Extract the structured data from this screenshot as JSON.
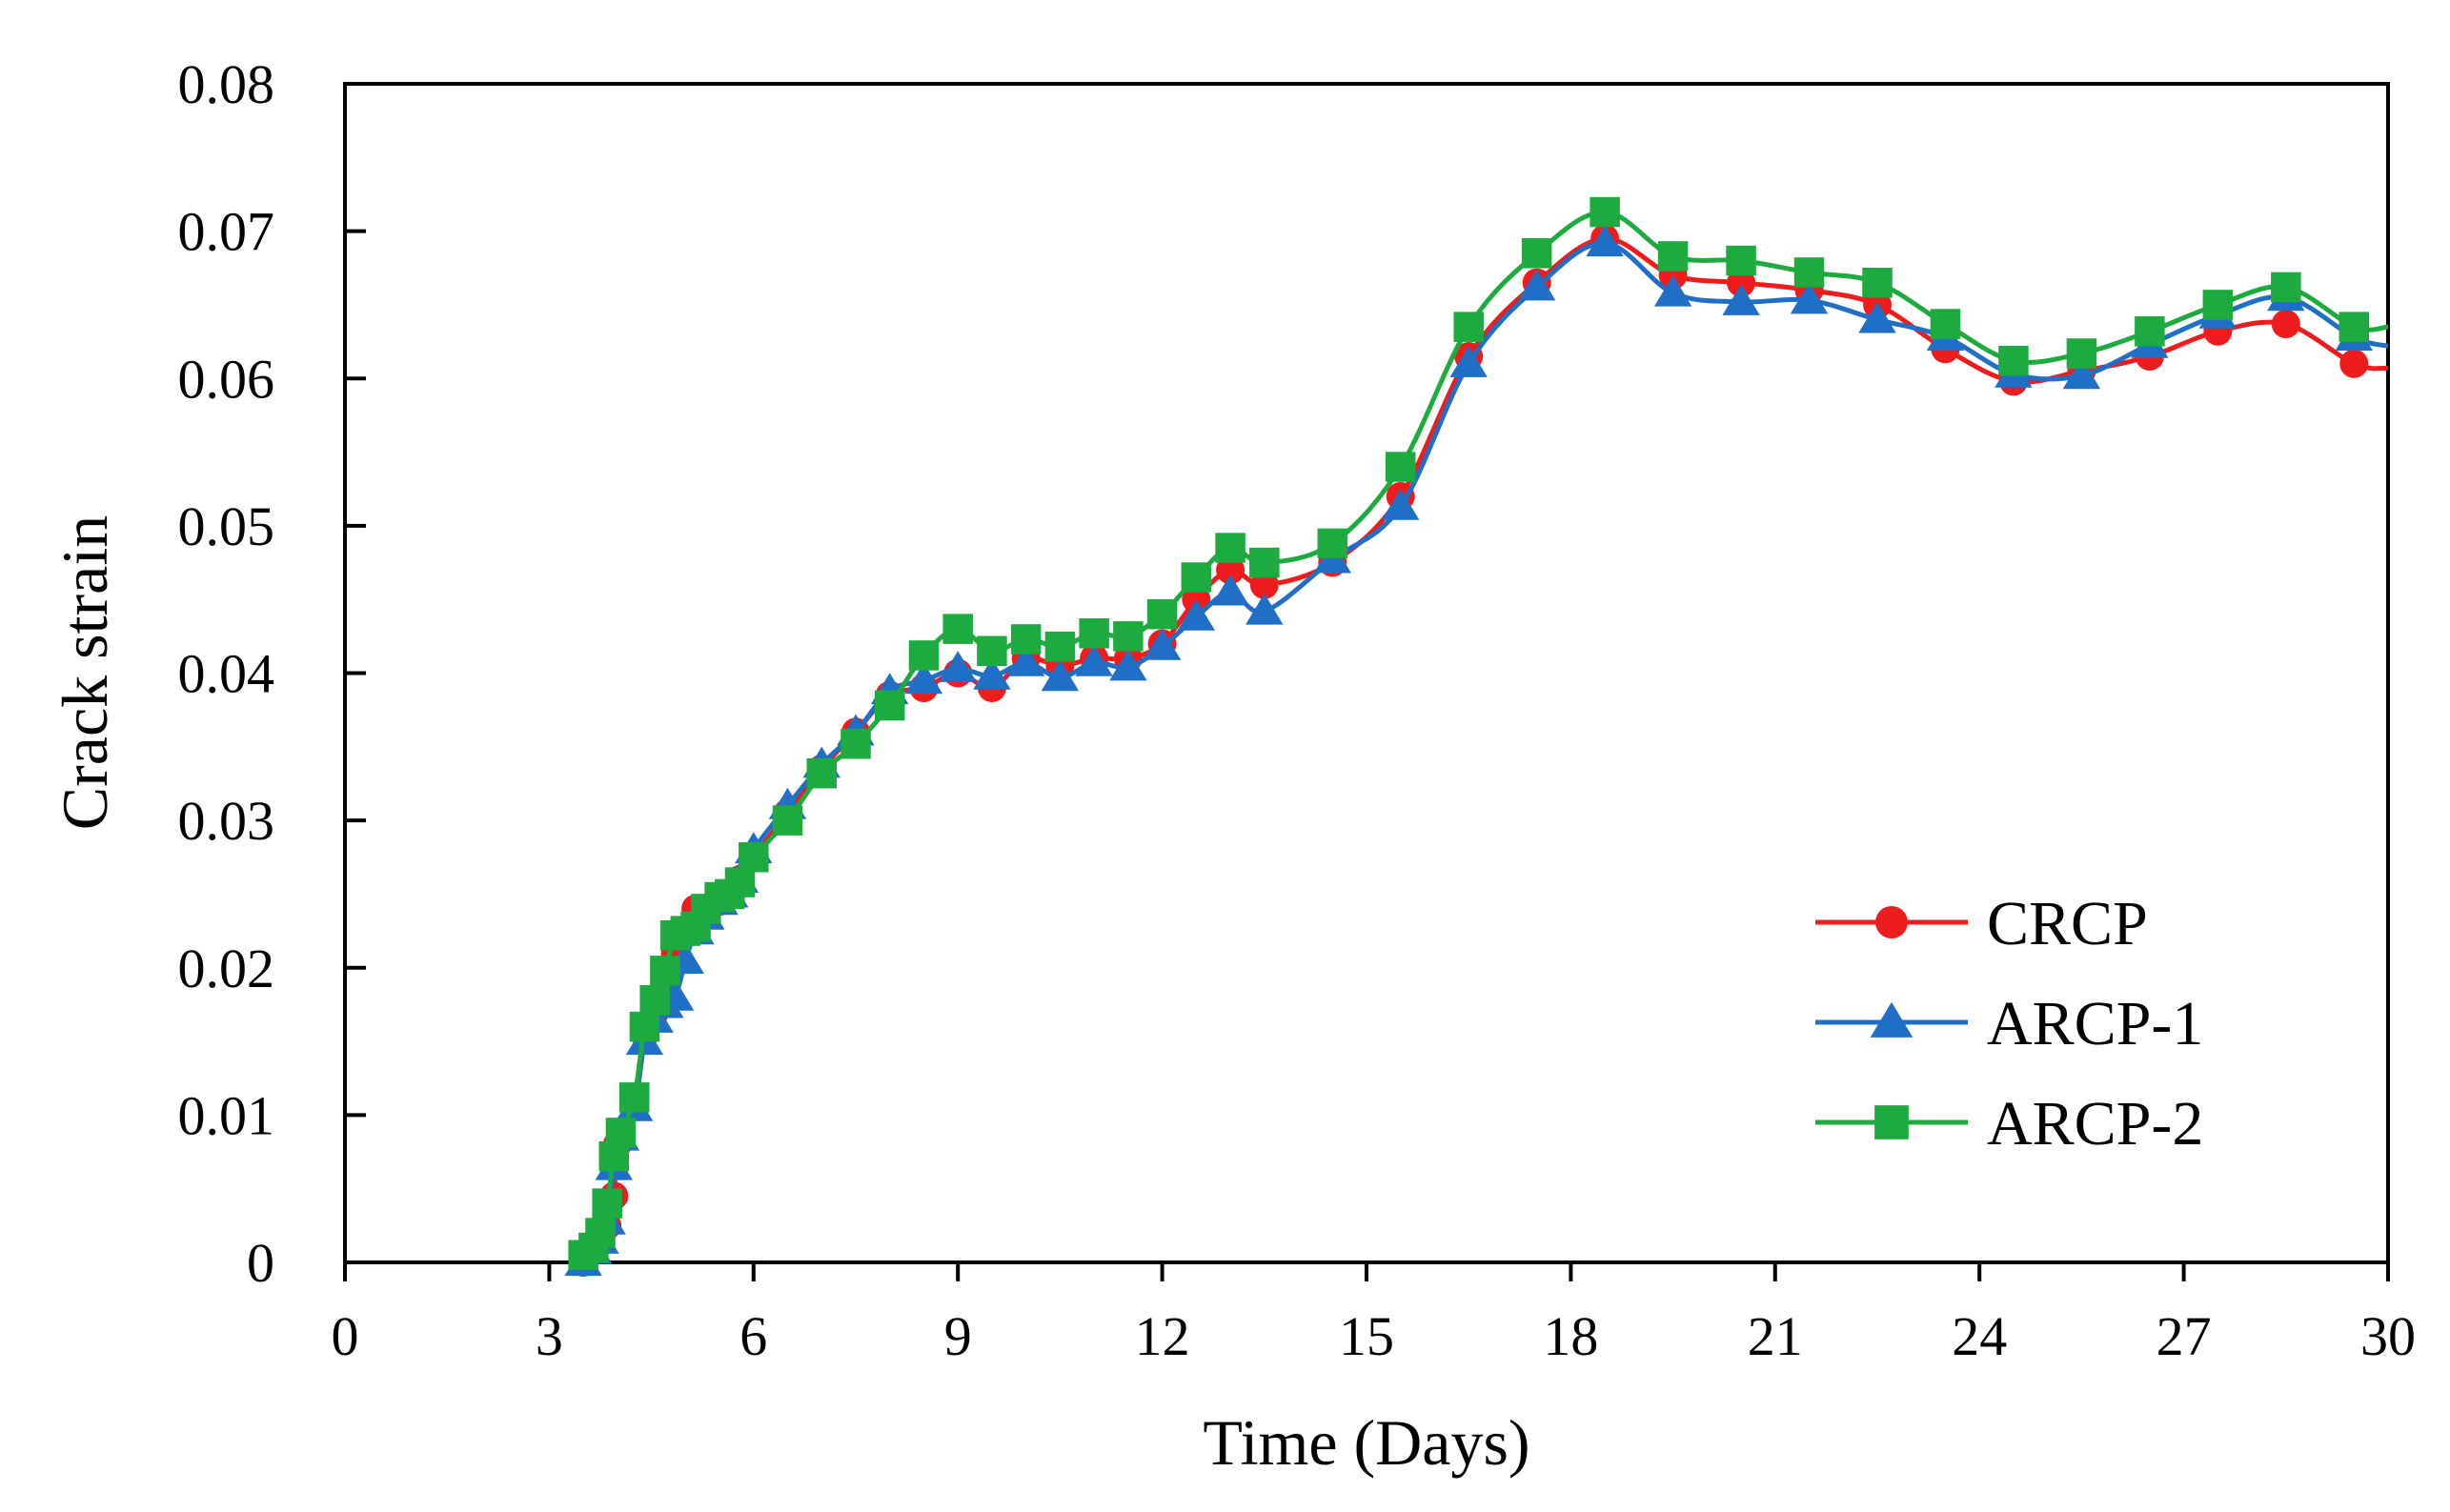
{
  "chart_data": {
    "type": "line",
    "title": "",
    "xlabel": "Time (Days)",
    "ylabel": "Crack strain",
    "xlim": [
      0,
      30
    ],
    "ylim": [
      0,
      0.08
    ],
    "xticks": [
      0,
      3,
      6,
      9,
      12,
      15,
      18,
      21,
      24,
      27,
      30
    ],
    "xtick_labels": [
      "0",
      "3",
      "6",
      "9",
      "12",
      "15",
      "18",
      "21",
      "24",
      "27",
      "30"
    ],
    "yticks": [
      0,
      0.01,
      0.02,
      0.03,
      0.04,
      0.05,
      0.06,
      0.07,
      0.08
    ],
    "ytick_labels": [
      "0",
      "0.01",
      "0.02",
      "0.03",
      "0.04",
      "0.05",
      "0.06",
      "0.07",
      "0.08"
    ],
    "grid": false,
    "legend_position": "bottom-right",
    "series": [
      {
        "name": "CRCP",
        "color": "#ee1c1c",
        "marker": "circle",
        "points": [
          [
            3.5,
            0.0
          ],
          [
            3.65,
            0.001
          ],
          [
            3.75,
            0.0015
          ],
          [
            3.85,
            0.0025
          ],
          [
            3.95,
            0.0045
          ],
          [
            4.0,
            0.008
          ],
          [
            4.25,
            0.011
          ],
          [
            4.4,
            0.0155
          ],
          [
            4.55,
            0.017
          ],
          [
            4.7,
            0.019
          ],
          [
            4.85,
            0.021
          ],
          [
            5.0,
            0.0225
          ],
          [
            5.15,
            0.024
          ],
          [
            5.3,
            0.024
          ],
          [
            5.5,
            0.0245
          ],
          [
            5.65,
            0.025
          ],
          [
            5.8,
            0.026
          ],
          [
            6.0,
            0.0275
          ],
          [
            6.5,
            0.0305
          ],
          [
            7.0,
            0.0335
          ],
          [
            7.5,
            0.036
          ],
          [
            8.0,
            0.0385
          ],
          [
            8.5,
            0.039
          ],
          [
            9.0,
            0.04
          ],
          [
            9.5,
            0.039
          ],
          [
            10.0,
            0.041
          ],
          [
            10.5,
            0.0405
          ],
          [
            11.0,
            0.041
          ],
          [
            11.5,
            0.041
          ],
          [
            12.0,
            0.042
          ],
          [
            12.5,
            0.045
          ],
          [
            13.0,
            0.047
          ],
          [
            13.5,
            0.046
          ],
          [
            14.5,
            0.0475
          ],
          [
            15.5,
            0.052
          ],
          [
            16.5,
            0.0615
          ],
          [
            17.5,
            0.0665
          ],
          [
            18.5,
            0.0695
          ],
          [
            19.5,
            0.067
          ],
          [
            20.5,
            0.0665
          ],
          [
            21.5,
            0.066
          ],
          [
            22.5,
            0.065
          ],
          [
            23.5,
            0.062
          ],
          [
            24.5,
            0.0598
          ],
          [
            25.5,
            0.0605
          ],
          [
            26.5,
            0.0615
          ],
          [
            27.5,
            0.0632
          ],
          [
            28.5,
            0.0637
          ],
          [
            29.5,
            0.061
          ],
          [
            30.0,
            0.0607
          ]
        ]
      },
      {
        "name": "ARCP-1",
        "color": "#1f6fc6",
        "marker": "triangle",
        "points": [
          [
            3.5,
            0.0
          ],
          [
            3.65,
            0.0008
          ],
          [
            3.75,
            0.0015
          ],
          [
            3.85,
            0.0028
          ],
          [
            3.95,
            0.0065
          ],
          [
            4.05,
            0.0085
          ],
          [
            4.25,
            0.0105
          ],
          [
            4.4,
            0.015
          ],
          [
            4.55,
            0.0165
          ],
          [
            4.7,
            0.0175
          ],
          [
            4.85,
            0.018
          ],
          [
            5.0,
            0.0205
          ],
          [
            5.15,
            0.0225
          ],
          [
            5.3,
            0.0235
          ],
          [
            5.5,
            0.0245
          ],
          [
            5.65,
            0.025
          ],
          [
            5.8,
            0.026
          ],
          [
            6.0,
            0.028
          ],
          [
            6.5,
            0.031
          ],
          [
            7.0,
            0.0338
          ],
          [
            7.5,
            0.036
          ],
          [
            8.0,
            0.0388
          ],
          [
            8.5,
            0.0395
          ],
          [
            9.0,
            0.0403
          ],
          [
            9.5,
            0.0398
          ],
          [
            10.0,
            0.0407
          ],
          [
            10.5,
            0.0397
          ],
          [
            11.0,
            0.0407
          ],
          [
            11.5,
            0.0404
          ],
          [
            12.0,
            0.0418
          ],
          [
            12.5,
            0.0438
          ],
          [
            13.0,
            0.0455
          ],
          [
            13.5,
            0.0442
          ],
          [
            14.5,
            0.0477
          ],
          [
            15.5,
            0.0513
          ],
          [
            16.5,
            0.061
          ],
          [
            17.5,
            0.0662
          ],
          [
            18.5,
            0.0692
          ],
          [
            19.5,
            0.0658
          ],
          [
            20.5,
            0.0652
          ],
          [
            21.5,
            0.0653
          ],
          [
            22.5,
            0.064
          ],
          [
            23.5,
            0.0628
          ],
          [
            24.5,
            0.0603
          ],
          [
            25.5,
            0.0602
          ],
          [
            26.5,
            0.0623
          ],
          [
            27.5,
            0.0643
          ],
          [
            28.5,
            0.0655
          ],
          [
            29.5,
            0.0628
          ],
          [
            30.0,
            0.0622
          ]
        ]
      },
      {
        "name": "ARCP-2",
        "color": "#1daa3e",
        "marker": "square",
        "points": [
          [
            3.5,
            0.0005
          ],
          [
            3.65,
            0.001
          ],
          [
            3.75,
            0.002
          ],
          [
            3.85,
            0.004
          ],
          [
            3.95,
            0.0072
          ],
          [
            4.05,
            0.0088
          ],
          [
            4.25,
            0.0112
          ],
          [
            4.4,
            0.016
          ],
          [
            4.55,
            0.0178
          ],
          [
            4.7,
            0.0198
          ],
          [
            4.85,
            0.0222
          ],
          [
            5.0,
            0.0225
          ],
          [
            5.15,
            0.0228
          ],
          [
            5.3,
            0.024
          ],
          [
            5.5,
            0.0248
          ],
          [
            5.65,
            0.025
          ],
          [
            5.8,
            0.0258
          ],
          [
            6.0,
            0.0275
          ],
          [
            6.5,
            0.03
          ],
          [
            7.0,
            0.0332
          ],
          [
            7.5,
            0.0352
          ],
          [
            8.0,
            0.0378
          ],
          [
            8.5,
            0.0412
          ],
          [
            9.0,
            0.043
          ],
          [
            9.5,
            0.0415
          ],
          [
            10.0,
            0.0423
          ],
          [
            10.5,
            0.0418
          ],
          [
            11.0,
            0.0427
          ],
          [
            11.5,
            0.0425
          ],
          [
            12.0,
            0.044
          ],
          [
            12.5,
            0.0465
          ],
          [
            13.0,
            0.0485
          ],
          [
            13.5,
            0.0475
          ],
          [
            14.5,
            0.0488
          ],
          [
            15.5,
            0.054
          ],
          [
            16.5,
            0.0635
          ],
          [
            17.5,
            0.0685
          ],
          [
            18.5,
            0.0713
          ],
          [
            19.5,
            0.0683
          ],
          [
            20.5,
            0.068
          ],
          [
            21.5,
            0.0672
          ],
          [
            22.5,
            0.0665
          ],
          [
            23.5,
            0.0637
          ],
          [
            24.5,
            0.0612
          ],
          [
            25.5,
            0.0617
          ],
          [
            26.5,
            0.0632
          ],
          [
            27.5,
            0.065
          ],
          [
            28.5,
            0.0662
          ],
          [
            29.5,
            0.0635
          ],
          [
            30.0,
            0.0635
          ]
        ]
      }
    ]
  }
}
